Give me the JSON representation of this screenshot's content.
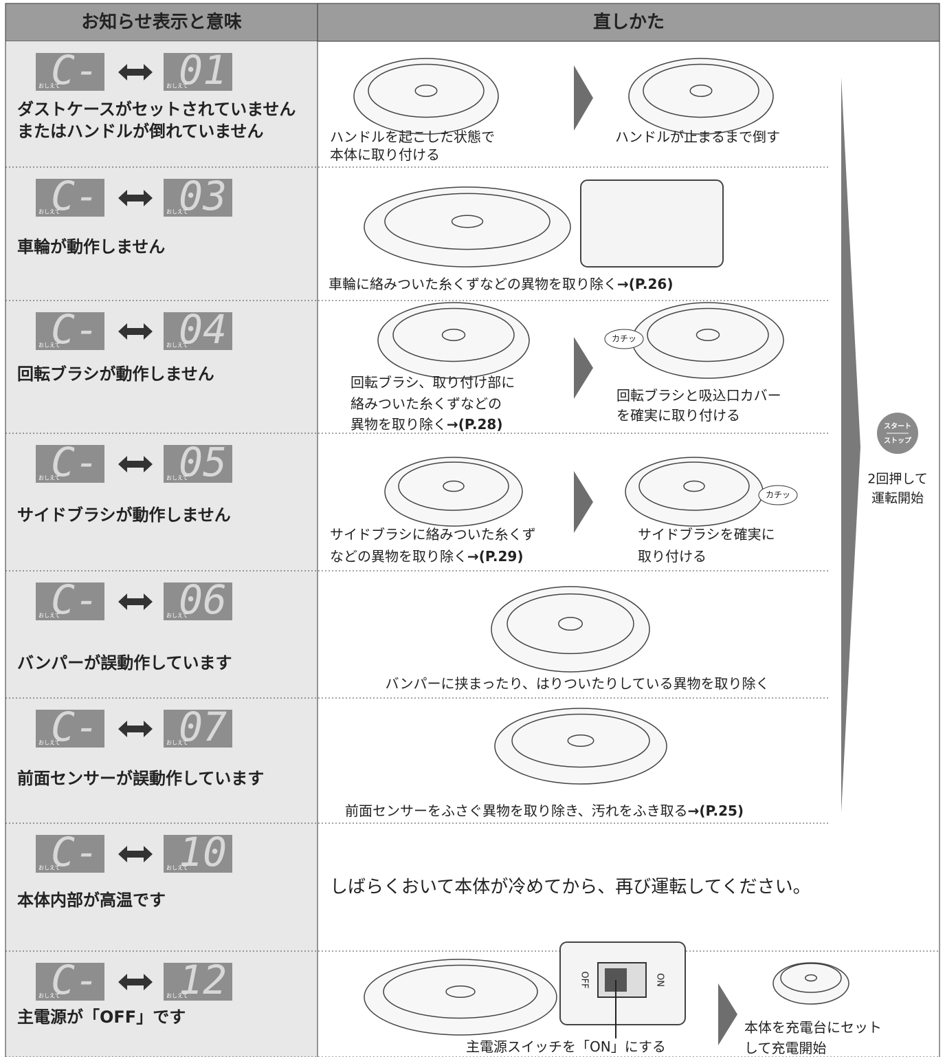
{
  "header": {
    "col1": "お知らせ表示と意味",
    "col2": "直しかた"
  },
  "display_badge": "おしえて",
  "rows": [
    {
      "code_left": "C-",
      "code_right": "01",
      "meaning": [
        "ダストケースがセットされていません",
        "またはハンドルが倒れていません"
      ],
      "steps": [
        {
          "lines": [
            "ハンドルを起こした状態で",
            "本体に取り付ける"
          ]
        },
        {
          "lines": [
            "ハンドルが止まるまで倒す"
          ]
        }
      ]
    },
    {
      "code_left": "C-",
      "code_right": "03",
      "meaning": [
        "車輪が動作しません"
      ],
      "steps": [
        {
          "lines": [
            "車輪に絡みついた糸くずなどの異物を取り除く"
          ],
          "ref": "→(P.26)"
        }
      ]
    },
    {
      "code_left": "C-",
      "code_right": "04",
      "meaning": [
        "回転ブラシが動作しません"
      ],
      "steps": [
        {
          "lines": [
            "回転ブラシ、取り付け部に",
            "絡みついた糸くずなどの",
            "異物を取り除く"
          ],
          "ref": "→(P.28)"
        },
        {
          "lines": [
            "回転ブラシと吸込口カバー",
            "を確実に取り付ける"
          ],
          "callout": "カチッ"
        }
      ]
    },
    {
      "code_left": "C-",
      "code_right": "05",
      "meaning": [
        "サイドブラシが動作しません"
      ],
      "steps": [
        {
          "lines": [
            "サイドブラシに絡みついた糸くず",
            "などの異物を取り除く"
          ],
          "ref": "→(P.29)"
        },
        {
          "lines": [
            "サイドブラシを確実に",
            "取り付ける"
          ],
          "callout": "カチッ"
        }
      ]
    },
    {
      "code_left": "C-",
      "code_right": "06",
      "meaning": [
        "バンパーが誤動作しています"
      ],
      "steps": [
        {
          "lines": [
            "バンパーに挟まったり、はりついたりしている異物を取り除く"
          ]
        }
      ]
    },
    {
      "code_left": "C-",
      "code_right": "07",
      "meaning": [
        "前面センサーが誤動作しています"
      ],
      "steps": [
        {
          "lines": [
            "前面センサーをふさぐ異物を取り除き、汚れをふき取る"
          ],
          "ref": "→(P.25)"
        }
      ]
    },
    {
      "code_left": "C-",
      "code_right": "10",
      "meaning": [
        "本体内部が高温です"
      ],
      "steps": [
        {
          "lines": [
            "しばらくおいて本体が冷めてから、再び運転してください。"
          ]
        }
      ]
    },
    {
      "code_left": "C-",
      "code_right": "12",
      "meaning": [
        "主電源が「OFF」です"
      ],
      "steps": [
        {
          "lines": [
            "主電源スイッチを「ON」にする"
          ]
        },
        {
          "lines": [
            "本体を充電台にセット",
            "して充電開始"
          ]
        }
      ]
    }
  ],
  "switch_labels": [
    "OFF",
    "ON"
  ],
  "restart": {
    "button_top": "スタート",
    "button_bottom": "ストップ",
    "lines": [
      "2回押して",
      "運転開始"
    ]
  }
}
